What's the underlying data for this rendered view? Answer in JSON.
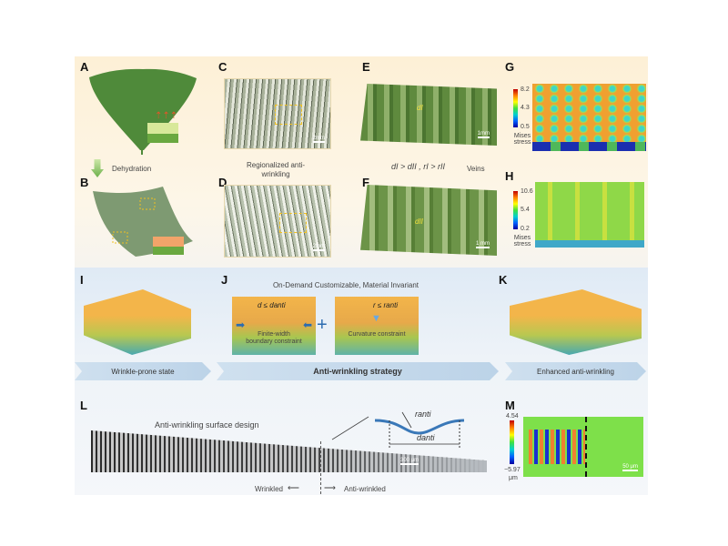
{
  "panels": {
    "A": "A",
    "B": "B",
    "C": "C",
    "D": "D",
    "E": "E",
    "F": "F",
    "G": "G",
    "H": "H",
    "I": "I",
    "J": "J",
    "K": "K",
    "L": "L",
    "M": "M"
  },
  "top": {
    "dehydration": "Dehydration",
    "regionalized": "Regionalized anti-wrinkling",
    "scale_C": "2mm",
    "scale_D": "2mm",
    "scale_E": "1mm",
    "scale_F": "1 mm",
    "d_I": "dI",
    "r_I": "rI",
    "d_II": "dII",
    "r_II": "rII",
    "relation": "dI > dII , rI > rII",
    "veins": "Veins",
    "G": {
      "max": "8.2",
      "mid": "4.3",
      "min": "0.5",
      "label": "Mises stress"
    },
    "H": {
      "max": "10.6",
      "mid": "5.4",
      "min": "0.2",
      "label": "Mises stress"
    }
  },
  "middle": {
    "header": "On-Demand Customizable, Material Invariant",
    "d_cond": "d ≤ danti",
    "r_cond": "r ≤ ranti",
    "finite": "Finite-width boundary constraint",
    "curvature": "Curvature constraint",
    "plus": "+",
    "banners": [
      "Wrinkle-prone state",
      "Anti-wrinkling strategy",
      "Enhanced anti-wrinkling"
    ]
  },
  "bottom": {
    "design": "Anti-wrinkling surface design",
    "r_anti": "ranti",
    "d_anti": "danti",
    "scale_L": "300 μm",
    "wrinkled": "Wrinkled",
    "anti_wrinkled": "Anti-wrinkled",
    "M": {
      "max": "4.54",
      "min": "−5.97",
      "unit": "μm",
      "scale": "50 μm"
    }
  },
  "colors": {
    "leaf": "#4f8a3a",
    "orange": "#f0b048",
    "banner": "#c6d9ec",
    "accent_yellow": "#f4e23a",
    "blue": "#3a78b8"
  }
}
